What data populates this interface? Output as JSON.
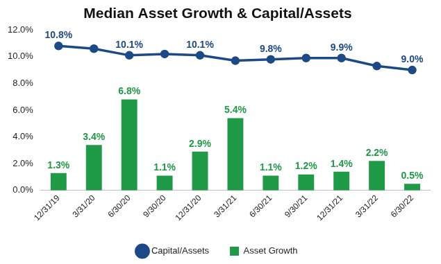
{
  "chart_data": {
    "type": "bar",
    "title": "Median Asset Growth & Capital/Assets",
    "categories": [
      "12/31/19",
      "3/31/20",
      "6/30/20",
      "9/30/20",
      "12/31/20",
      "3/31/21",
      "6/30/21",
      "9/30/21",
      "12/31/21",
      "3/31/22",
      "6/30/22"
    ],
    "series": [
      {
        "name": "Asset Growth",
        "type": "bar",
        "color": "#1f9a46",
        "values": [
          1.3,
          3.4,
          6.8,
          1.1,
          2.9,
          5.4,
          1.1,
          1.2,
          1.4,
          2.2,
          0.5
        ],
        "data_labels": true,
        "value_labels": [
          "1.3%",
          "3.4%",
          "6.8%",
          "1.1%",
          "2.9%",
          "5.4%",
          "1.1%",
          "1.2%",
          "1.4%",
          "2.2%",
          "0.5%"
        ]
      },
      {
        "name": "Capital/Assets",
        "type": "line",
        "color": "#1c4a86",
        "marker": "circle",
        "line_style": "solid",
        "values": [
          10.8,
          10.6,
          10.1,
          10.2,
          10.1,
          9.7,
          9.8,
          9.9,
          9.9,
          9.3,
          9.0
        ],
        "data_labels": true,
        "value_labels": [
          "10.8%",
          null,
          "10.1%",
          null,
          "10.1%",
          null,
          "9.8%",
          null,
          "9.9%",
          null,
          "9.0%"
        ]
      }
    ],
    "ylim": [
      0,
      12
    ],
    "yticks": [
      {
        "value": 0,
        "label": "0.0%"
      },
      {
        "value": 2,
        "label": "2.0%"
      },
      {
        "value": 4,
        "label": "4.0%"
      },
      {
        "value": 6,
        "label": "6.0%"
      },
      {
        "value": 8,
        "label": "8.0%"
      },
      {
        "value": 10,
        "label": "10.0%"
      },
      {
        "value": 12,
        "label": "12.0%"
      }
    ],
    "grid": false,
    "legend": "bottom"
  }
}
